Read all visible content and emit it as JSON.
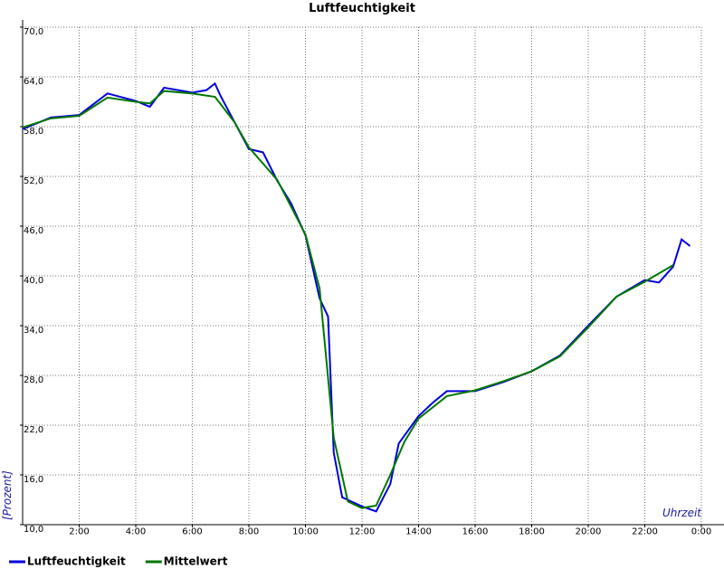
{
  "chart_data": {
    "type": "line",
    "title": "Luftfeuchtigkeit",
    "y_label": "[Prozent]",
    "x_label": "Uhrzeit",
    "xlim": [
      0,
      24
    ],
    "xticks": [
      {
        "value": 2,
        "label": "2:00"
      },
      {
        "value": 4,
        "label": "4:00"
      },
      {
        "value": 6,
        "label": "6:00"
      },
      {
        "value": 8,
        "label": "8:00"
      },
      {
        "value": 10,
        "label": "10:00"
      },
      {
        "value": 12,
        "label": "12:00"
      },
      {
        "value": 14,
        "label": "14:00"
      },
      {
        "value": 16,
        "label": "16:00"
      },
      {
        "value": 18,
        "label": "18:00"
      },
      {
        "value": 20,
        "label": "20:00"
      },
      {
        "value": 22,
        "label": "22:00"
      },
      {
        "value": 24,
        "label": "0:00"
      }
    ],
    "ylim": [
      10,
      70
    ],
    "yticks": [
      {
        "value": 10,
        "label": "10,0"
      },
      {
        "value": 16,
        "label": "16,0"
      },
      {
        "value": 22,
        "label": "22,0"
      },
      {
        "value": 28,
        "label": "28,0"
      },
      {
        "value": 34,
        "label": "34,0"
      },
      {
        "value": 40,
        "label": "40,0"
      },
      {
        "value": 46,
        "label": "46,0"
      },
      {
        "value": 52,
        "label": "52,0"
      },
      {
        "value": 58,
        "label": "58,0"
      },
      {
        "value": 64,
        "label": "64,0"
      },
      {
        "value": 70,
        "label": "70,0"
      }
    ],
    "grid": true,
    "legend": "bottom-left",
    "series": [
      {
        "name": "Luftfeuchtigkeit",
        "color": "#0000dd",
        "x": [
          0,
          1,
          2,
          3,
          4,
          4.5,
          5,
          6,
          6.5,
          6.8,
          7,
          7.5,
          8,
          8.5,
          9,
          9.5,
          10,
          10.5,
          10.8,
          11,
          11.3,
          12,
          12.5,
          13,
          13.3,
          14,
          14.5,
          15,
          16,
          17,
          18,
          19,
          20,
          21,
          22,
          22.5,
          23,
          23.3,
          23.6
        ],
        "values": [
          57.7,
          59.1,
          59.4,
          62.0,
          61.1,
          60.4,
          62.7,
          62.1,
          62.4,
          63.2,
          61.7,
          58.5,
          55.3,
          54.9,
          51.5,
          48.7,
          44.9,
          37.3,
          35.1,
          18.7,
          13.3,
          12.2,
          11.6,
          14.9,
          19.8,
          23.1,
          24.7,
          26.1,
          26.1,
          27.2,
          28.5,
          30.4,
          34.0,
          37.5,
          39.5,
          39.2,
          41.1,
          44.4,
          43.6
        ]
      },
      {
        "name": "Mittelwert",
        "color": "#007700",
        "x": [
          0,
          1,
          2,
          3,
          4,
          4.5,
          5,
          6,
          6.8,
          7.5,
          8,
          9,
          10,
          10.5,
          11,
          11.5,
          12,
          12.5,
          13,
          13.5,
          14,
          15,
          16,
          17,
          18,
          19,
          20,
          21,
          22,
          23
        ],
        "values": [
          57.9,
          59.0,
          59.3,
          61.5,
          61.0,
          60.8,
          62.3,
          62.0,
          61.6,
          58.5,
          55.5,
          51.6,
          45.0,
          38.5,
          20.5,
          12.8,
          12.0,
          12.3,
          16.0,
          20.0,
          22.8,
          25.5,
          26.2,
          27.3,
          28.5,
          30.3,
          33.8,
          37.5,
          39.3,
          41.3
        ]
      }
    ]
  }
}
